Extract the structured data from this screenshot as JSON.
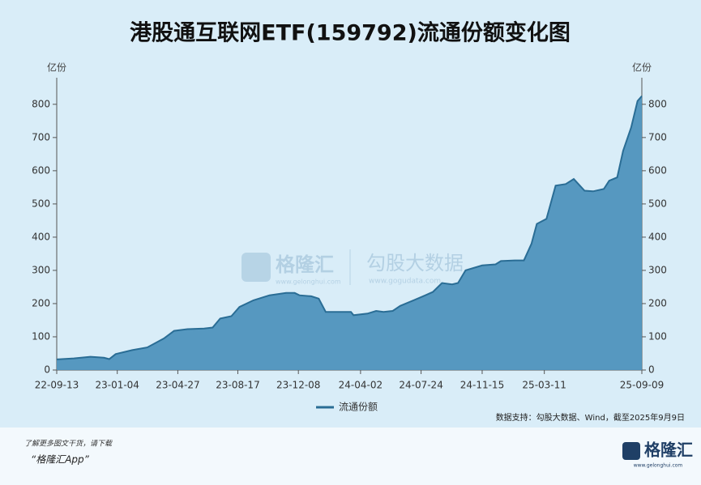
{
  "chart_data": {
    "type": "area",
    "title": "港股通互联网ETF(159792)流通份额变化图",
    "y_unit": "亿份",
    "y2_unit": "亿份",
    "x": [
      "22-09-13",
      "22-10-15",
      "22-11-15",
      "22-12-10",
      "22-12-20",
      "23-01-01",
      "23-02-01",
      "23-03-01",
      "23-04-01",
      "23-04-20",
      "23-05-15",
      "23-06-15",
      "23-07-01",
      "23-07-15",
      "23-08-05",
      "23-08-20",
      "23-09-15",
      "23-10-15",
      "23-11-15",
      "23-12-01",
      "23-12-10",
      "24-01-01",
      "24-01-15",
      "24-01-28",
      "24-03-15",
      "24-03-20",
      "24-04-15",
      "24-05-01",
      "24-05-15",
      "24-06-01",
      "24-06-15",
      "24-07-10",
      "24-08-01",
      "24-08-15",
      "24-09-01",
      "24-09-20",
      "24-10-01",
      "24-10-15",
      "24-11-15",
      "24-12-10",
      "24-12-20",
      "25-01-15",
      "25-02-01",
      "25-02-15",
      "25-02-25",
      "25-03-15",
      "25-04-01",
      "25-04-20",
      "25-05-05",
      "25-05-25",
      "25-06-10",
      "25-06-30",
      "25-07-10",
      "25-07-25",
      "25-08-05",
      "25-08-20",
      "25-09-01",
      "25-09-09"
    ],
    "series": [
      {
        "name": "流通份额",
        "color": "#4f93bd",
        "line_color": "#2a6d95",
        "values": [
          32,
          35,
          40,
          37,
          33,
          48,
          60,
          68,
          95,
          118,
          123,
          125,
          128,
          155,
          162,
          190,
          210,
          225,
          232,
          232,
          225,
          222,
          215,
          175,
          175,
          165,
          170,
          178,
          175,
          178,
          193,
          210,
          225,
          235,
          262,
          258,
          262,
          300,
          315,
          318,
          328,
          330,
          330,
          380,
          440,
          455,
          555,
          560,
          575,
          540,
          538,
          545,
          570,
          580,
          660,
          730,
          810,
          825
        ]
      }
    ],
    "xlim": [
      "22-09-13",
      "25-09-09"
    ],
    "xticks": [
      "22-09-13",
      "23-01-04",
      "23-04-27",
      "23-08-17",
      "23-12-08",
      "24-04-02",
      "24-07-24",
      "24-11-15",
      "25-03-11",
      "25-09-09"
    ],
    "ylim": [
      0,
      880
    ],
    "yticks": [
      0,
      100,
      200,
      300,
      400,
      500,
      600,
      700,
      800
    ],
    "y2lim": [
      0,
      880
    ],
    "y2ticks": [
      0,
      100,
      200,
      300,
      400,
      500,
      600,
      700,
      800
    ],
    "source": "数据支持：勾股大数据、Wind，截至2025年9月9日",
    "watermark": {
      "brand": "格隆汇",
      "brand_url": "www.gelonghui.com",
      "partner": "勾股大数据",
      "partner_url": "www.gogudata.com"
    },
    "footer": {
      "note": "了解更多图文干货，请下载",
      "app": "“格隆汇App”",
      "logo": "格隆汇",
      "logo_url": "www.gelonghui.com"
    }
  }
}
